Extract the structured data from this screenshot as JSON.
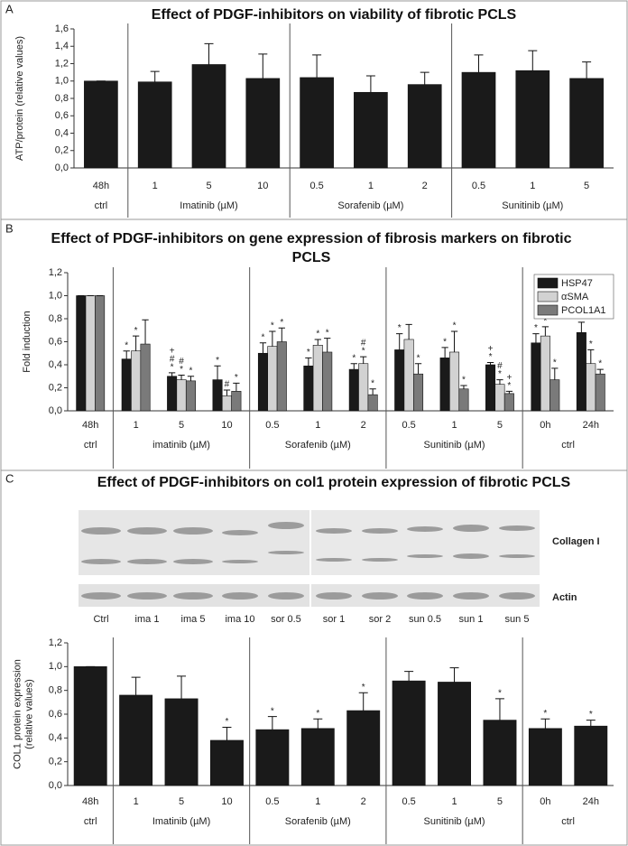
{
  "chart_data": [
    {
      "type": "bar",
      "panel": "A",
      "title": "Effect of PDGF-inhibitors on viability of fibrotic PCLS",
      "ylabel": [
        "ATP/protein (relative values)"
      ],
      "groups": [
        {
          "label": "ctrl",
          "categories": [
            "48h"
          ]
        },
        {
          "label": "Imatinib (µM)",
          "categories": [
            "1",
            "5",
            "10"
          ]
        },
        {
          "label": "Sorafenib (µM)",
          "categories": [
            "0.5",
            "1",
            "2"
          ]
        },
        {
          "label": "Sunitinib (µM)",
          "categories": [
            "0.5",
            "1",
            "5"
          ]
        }
      ],
      "values": [
        1.0,
        0.99,
        1.19,
        1.03,
        1.04,
        0.87,
        0.96,
        1.1,
        1.12,
        1.03
      ],
      "errors": [
        0,
        0.12,
        0.24,
        0.28,
        0.26,
        0.19,
        0.14,
        0.2,
        0.23,
        0.19
      ],
      "color": "#1a1a1a",
      "ylim": [
        0,
        1.6
      ],
      "yticks": [
        {
          "value": 0,
          "label": "0,0"
        },
        {
          "value": 0.2,
          "label": "0,2"
        },
        {
          "value": 0.4,
          "label": "0,4"
        },
        {
          "value": 0.6,
          "label": "0,6"
        },
        {
          "value": 0.8,
          "label": "0,8"
        },
        {
          "value": 1.0,
          "label": "1,0"
        },
        {
          "value": 1.2,
          "label": "1,2"
        },
        {
          "value": 1.4,
          "label": "1,4"
        },
        {
          "value": 1.6,
          "label": "1,6"
        }
      ]
    },
    {
      "type": "bar",
      "panel": "B",
      "title": "Effect of PDGF-inhibitors on gene expression of fibrosis markers on fibrotic PCLS",
      "ylabel": [
        "Fold induction"
      ],
      "groups": [
        {
          "label": "ctrl",
          "categories": [
            "48h"
          ]
        },
        {
          "label": "imatinib (µM)",
          "categories": [
            "1",
            "5",
            "10"
          ]
        },
        {
          "label": "Sorafenib (µM)",
          "categories": [
            "0.5",
            "1",
            "2"
          ]
        },
        {
          "label": "Sunitinib (µM)",
          "categories": [
            "0.5",
            "1",
            "5"
          ]
        },
        {
          "label": "ctrl",
          "categories": [
            "0h",
            "24h"
          ]
        }
      ],
      "series": [
        {
          "name": "HSP47",
          "color": "#1a1a1a",
          "values": [
            1.0,
            0.45,
            0.3,
            0.27,
            0.5,
            0.39,
            0.36,
            0.53,
            0.46,
            0.4,
            0.59,
            0.68
          ],
          "errors": [
            0,
            0.07,
            0.03,
            0.12,
            0.09,
            0.07,
            0.05,
            0.14,
            0.09,
            0.02,
            0.08,
            0.09
          ],
          "significance": [
            [],
            [
              "*"
            ],
            [
              "+",
              "#",
              "*"
            ],
            [
              "*"
            ],
            [
              "*"
            ],
            [
              "*"
            ],
            [
              "*"
            ],
            [
              "*"
            ],
            [
              "*"
            ],
            [
              "+",
              "*"
            ],
            [
              "*"
            ],
            [
              "*"
            ]
          ]
        },
        {
          "name": "αSMA",
          "color": "#d2d2d2",
          "values": [
            1.0,
            0.52,
            0.27,
            0.13,
            0.56,
            0.57,
            0.41,
            0.62,
            0.51,
            0.23,
            0.65,
            0.41
          ],
          "errors": [
            0,
            0.13,
            0.04,
            0.05,
            0.13,
            0.05,
            0.06,
            0.13,
            0.18,
            0.04,
            0.08,
            0.12
          ],
          "significance": [
            [],
            [
              "*"
            ],
            [
              "#",
              "*"
            ],
            [
              "#"
            ],
            [
              "*"
            ],
            [
              "*"
            ],
            [
              "#",
              "*"
            ],
            [],
            [
              "*"
            ],
            [
              "#",
              "*"
            ],
            [
              "*"
            ],
            [
              "*"
            ]
          ]
        },
        {
          "name": "PCOL1A1",
          "color": "#7a7a7a",
          "values": [
            1.0,
            0.58,
            0.26,
            0.17,
            0.6,
            0.51,
            0.14,
            0.32,
            0.19,
            0.15,
            0.27,
            0.32
          ],
          "errors": [
            0,
            0.21,
            0.04,
            0.07,
            0.12,
            0.12,
            0.05,
            0.09,
            0.03,
            0.02,
            0.1,
            0.04
          ],
          "significance": [
            [],
            [],
            [
              "*"
            ],
            [
              "*"
            ],
            [
              "*"
            ],
            [
              "*"
            ],
            [
              "*"
            ],
            [
              "*"
            ],
            [
              "*"
            ],
            [
              "+",
              "*"
            ],
            [
              "*"
            ],
            [
              "*"
            ]
          ]
        }
      ],
      "legend": "upper right",
      "ylim": [
        0,
        1.2
      ],
      "yticks": [
        {
          "value": 0,
          "label": "0,0"
        },
        {
          "value": 0.2,
          "label": "0,2"
        },
        {
          "value": 0.4,
          "label": "0,4"
        },
        {
          "value": 0.6,
          "label": "0,6"
        },
        {
          "value": 0.8,
          "label": "0,8"
        },
        {
          "value": 1.0,
          "label": "1,0"
        },
        {
          "value": 1.2,
          "label": "1,2"
        }
      ]
    },
    {
      "type": "bar",
      "panel": "C",
      "title": "Effect of PDGF-inhibitors on col1 protein expression of fibrotic PCLS",
      "blot": {
        "bands": [
          "Collagen I",
          "Actin"
        ],
        "lanes": [
          "Ctrl",
          "ima 1",
          "ima 5",
          "ima 10",
          "sor 0.5",
          "sor 1",
          "sor 2",
          "sun 0.5",
          "sun 1",
          "sun 5"
        ]
      },
      "ylabel": [
        "COL1 protein expression",
        "(relative values)"
      ],
      "groups": [
        {
          "label": "ctrl",
          "categories": [
            "48h"
          ]
        },
        {
          "label": "Imatinib (µM)",
          "categories": [
            "1",
            "5",
            "10"
          ]
        },
        {
          "label": "Sorafenib (µM)",
          "categories": [
            "0.5",
            "1",
            "2"
          ]
        },
        {
          "label": "Sunitinib (µM)",
          "categories": [
            "0.5",
            "1",
            "5"
          ]
        },
        {
          "label": "ctrl",
          "categories": [
            "0h",
            "24h"
          ]
        }
      ],
      "values": [
        1.0,
        0.76,
        0.73,
        0.38,
        0.47,
        0.48,
        0.63,
        0.88,
        0.87,
        0.55,
        0.48,
        0.5
      ],
      "errors": [
        0,
        0.15,
        0.19,
        0.11,
        0.11,
        0.08,
        0.15,
        0.08,
        0.12,
        0.18,
        0.08,
        0.05
      ],
      "significance": [
        [],
        [],
        [],
        [
          "*"
        ],
        [
          "*"
        ],
        [
          "*"
        ],
        [
          "*"
        ],
        [],
        [],
        [
          "*"
        ],
        [
          "*"
        ],
        [
          "*"
        ]
      ],
      "color": "#1a1a1a",
      "ylim": [
        0,
        1.2
      ],
      "yticks": [
        {
          "value": 0,
          "label": "0,0"
        },
        {
          "value": 0.2,
          "label": "0,2"
        },
        {
          "value": 0.4,
          "label": "0,4"
        },
        {
          "value": 0.6,
          "label": "0,6"
        },
        {
          "value": 0.8,
          "label": "0,8"
        },
        {
          "value": 1.0,
          "label": "1,0"
        },
        {
          "value": 1.2,
          "label": "1,2"
        }
      ]
    }
  ]
}
